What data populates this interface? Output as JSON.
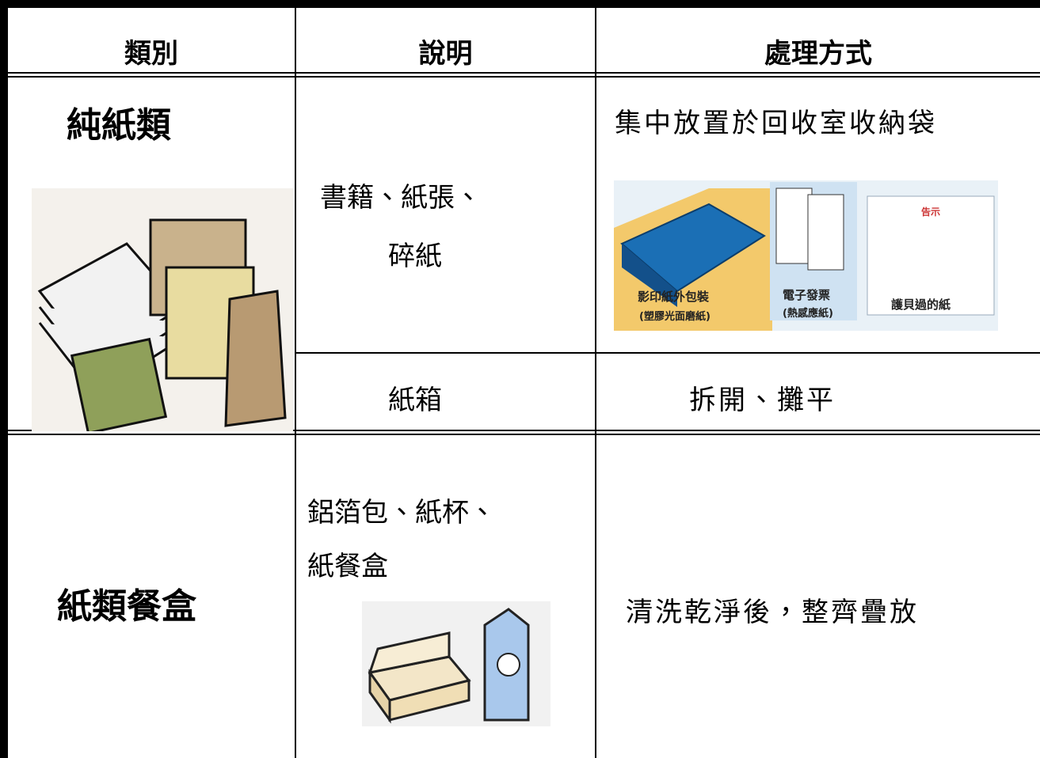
{
  "header": {
    "columns": [
      "類別",
      "說明",
      "處理方式"
    ]
  },
  "rows": [
    {
      "category": "純紙類",
      "items": [
        {
          "description": [
            "書籍、紙張、",
            "碎紙"
          ],
          "handling": "集中放置於回收室收納袋",
          "image_labels": [
            "影印紙外包裝",
            "(塑膠光面磨紙)",
            "電子發票",
            "(熱感應紙)",
            "告示",
            "護貝過的紙"
          ]
        },
        {
          "description": [
            "紙箱"
          ],
          "handling": "拆開、攤平"
        }
      ]
    },
    {
      "category": "紙類餐盒",
      "items": [
        {
          "description": [
            "鋁箔包、紙杯、",
            "紙餐盒"
          ],
          "handling": "清洗乾淨後，整齊疊放"
        }
      ]
    }
  ]
}
